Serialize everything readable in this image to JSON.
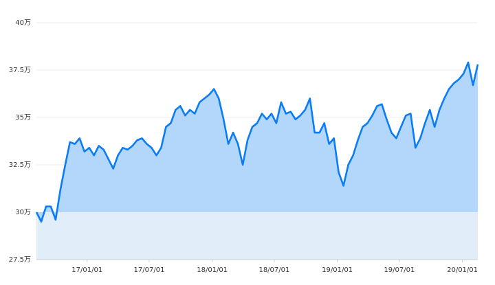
{
  "chart_data": {
    "type": "area",
    "x": [
      "16/08/06",
      "16/08/20",
      "16/09/03",
      "16/09/17",
      "16/10/01",
      "16/10/15",
      "16/10/29",
      "16/11/12",
      "16/11/26",
      "16/12/10",
      "16/12/24",
      "17/01/07",
      "17/01/21",
      "17/02/04",
      "17/02/18",
      "17/03/04",
      "17/03/18",
      "17/04/01",
      "17/04/15",
      "17/04/29",
      "17/05/13",
      "17/05/27",
      "17/06/10",
      "17/06/24",
      "17/07/08",
      "17/07/22",
      "17/08/05",
      "17/08/19",
      "17/09/02",
      "17/09/16",
      "17/09/30",
      "17/10/14",
      "17/10/28",
      "17/11/11",
      "17/11/25",
      "17/12/09",
      "17/12/23",
      "18/01/06",
      "18/01/20",
      "18/02/03",
      "18/02/17",
      "18/03/03",
      "18/03/17",
      "18/03/31",
      "18/04/14",
      "18/04/28",
      "18/05/12",
      "18/05/26",
      "18/06/09",
      "18/06/23",
      "18/07/07",
      "18/07/21",
      "18/08/04",
      "18/08/18",
      "18/09/01",
      "18/09/15",
      "18/09/29",
      "18/10/13",
      "18/10/27",
      "18/11/10",
      "18/11/24",
      "18/12/08",
      "18/12/22",
      "19/01/05",
      "19/01/19",
      "19/02/02",
      "19/02/16",
      "19/03/02",
      "19/03/16",
      "19/03/30",
      "19/04/13",
      "19/04/27",
      "19/05/11",
      "19/05/25",
      "19/06/08",
      "19/06/22",
      "19/07/06",
      "19/07/20",
      "19/08/03",
      "19/08/17",
      "19/08/31",
      "19/09/14",
      "19/09/28",
      "19/10/12",
      "19/10/26",
      "19/11/09",
      "19/11/23",
      "19/12/07",
      "19/12/21",
      "20/01/04",
      "20/01/18",
      "20/02/01",
      "20/02/15"
    ],
    "series": [
      {
        "color": "#0a7cf5",
        "values": [
          30.0,
          29.5,
          30.3,
          30.3,
          29.6,
          31.2,
          32.5,
          33.7,
          33.6,
          33.9,
          33.2,
          33.4,
          33.0,
          33.5,
          33.3,
          32.8,
          32.3,
          33.0,
          33.4,
          33.3,
          33.5,
          33.8,
          33.9,
          33.6,
          33.4,
          33.0,
          33.4,
          34.5,
          34.7,
          35.4,
          35.6,
          35.1,
          35.4,
          35.2,
          35.8,
          36.0,
          36.2,
          36.5,
          36.0,
          34.9,
          33.6,
          34.2,
          33.6,
          32.5,
          33.8,
          34.5,
          34.7,
          35.2,
          34.9,
          35.2,
          34.7,
          35.8,
          35.2,
          35.3,
          34.9,
          35.1,
          35.4,
          36.0,
          34.2,
          34.2,
          34.7,
          33.6,
          33.9,
          32.1,
          31.4,
          32.5,
          33.0,
          33.8,
          34.5,
          34.7,
          35.1,
          35.6,
          35.7,
          34.9,
          34.2,
          33.9,
          34.5,
          35.1,
          35.2,
          33.4,
          33.9,
          34.7,
          35.4,
          34.5,
          35.4,
          36.0,
          36.5,
          36.8,
          37.0,
          37.3,
          37.9,
          36.7,
          37.8
        ]
      }
    ],
    "xlim": [
      "16/08/06",
      "20/02/15"
    ],
    "xticks": [
      "17/01/01",
      "17/07/01",
      "18/01/01",
      "18/07/01",
      "19/01/01",
      "19/07/01",
      "20/01/01"
    ],
    "ylim": [
      27.5,
      40
    ],
    "yticks": [
      {
        "value": 27.5,
        "label": "27.5万"
      },
      {
        "value": 30,
        "label": "30万"
      },
      {
        "value": 32.5,
        "label": "32.5万"
      },
      {
        "value": 35,
        "label": "35万"
      },
      {
        "value": 37.5,
        "label": "37.5万"
      },
      {
        "value": 40,
        "label": "40万"
      }
    ],
    "grid": true
  }
}
